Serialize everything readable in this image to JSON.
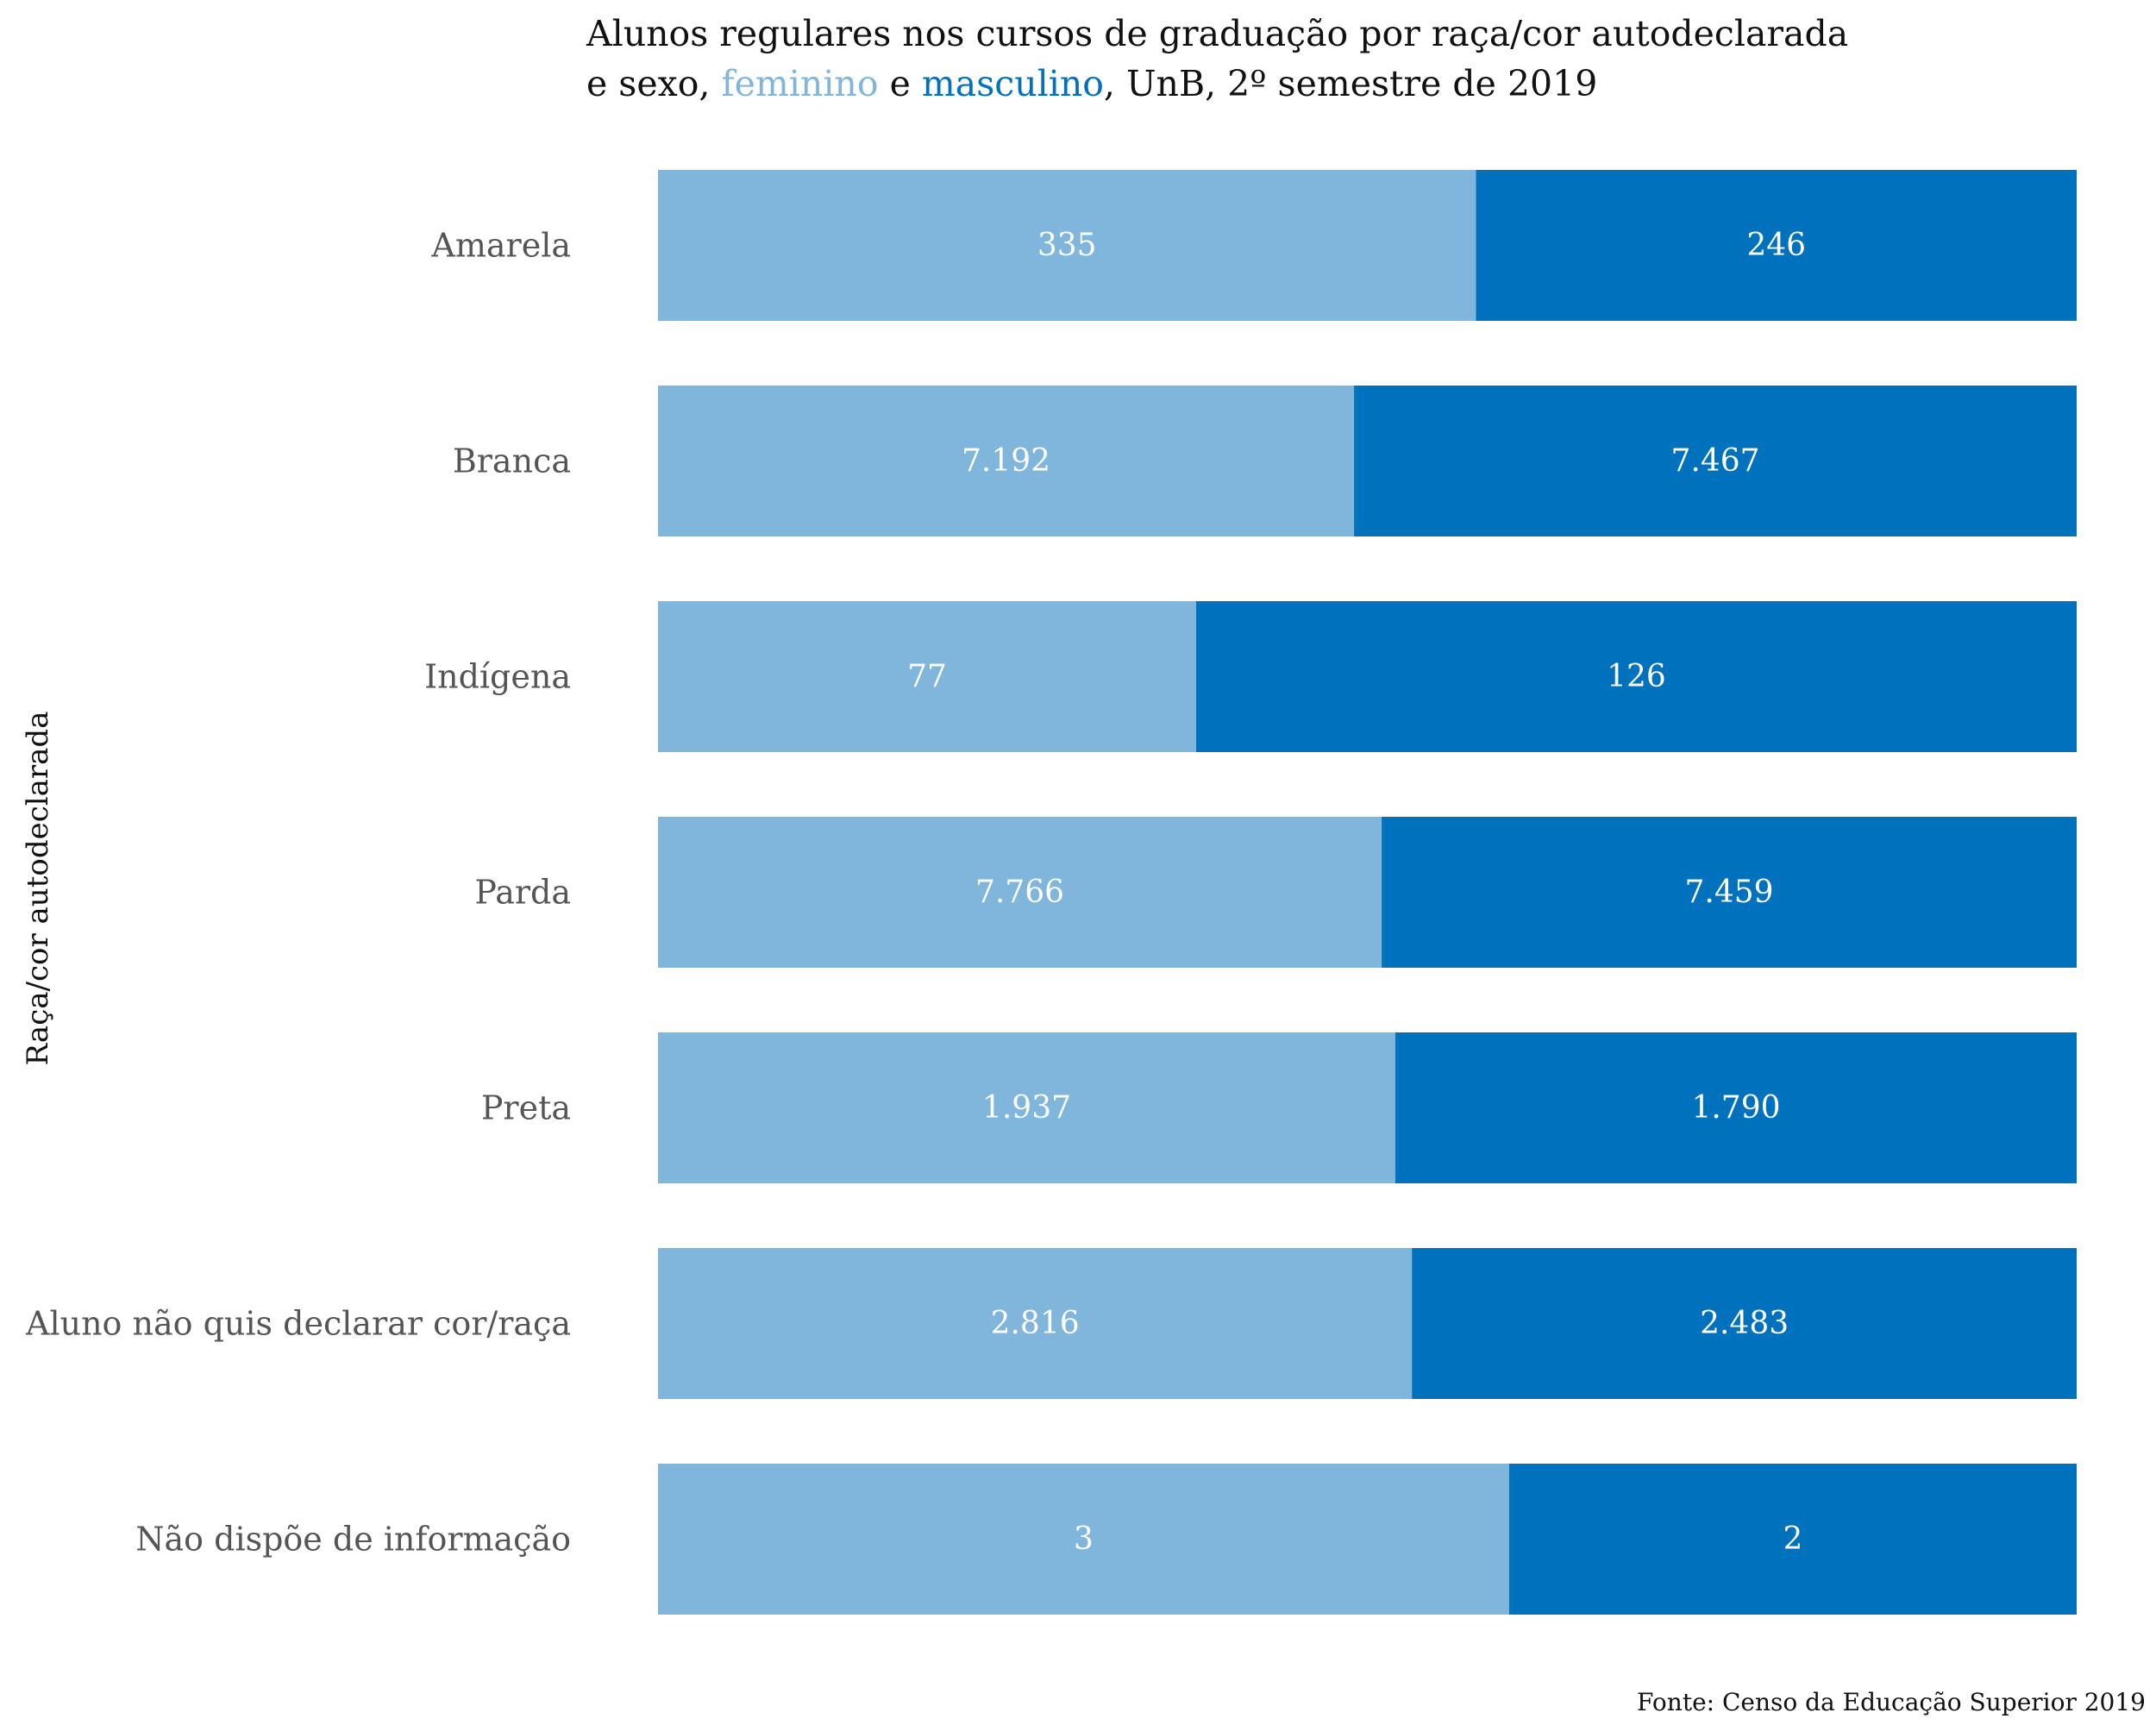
{
  "title": {
    "line1": "Alunos regulares nos cursos de graduação por raça/cor autodeclarada",
    "line2_prefix": "e sexo, ",
    "series1_word": "feminino",
    "connector": " e ",
    "series2_word": "masculino",
    "line2_suffix": ", UnB, 2º semestre de 2019"
  },
  "source": "Fonte: Censo da Educação Superior 2019",
  "colors": {
    "feminino": "#80b6dc",
    "masculino": "#0072bd"
  },
  "chart_data": {
    "type": "bar",
    "orientation": "horizontal",
    "stacking": "percent",
    "ylabel": "Raça/cor autodeclarada",
    "xlabel": "",
    "categories": [
      "Amarela",
      "Branca",
      "Indígena",
      "Parda",
      "Preta",
      "Aluno não quis declarar cor/raça",
      "Não dispõe de informação"
    ],
    "series": [
      {
        "name": "feminino",
        "values": [
          335,
          7192,
          77,
          7766,
          1937,
          2816,
          3
        ],
        "labels": [
          "335",
          "7.192",
          "77",
          "7.766",
          "1.937",
          "2.816",
          "3"
        ]
      },
      {
        "name": "masculino",
        "values": [
          246,
          7467,
          126,
          7459,
          1790,
          2483,
          2
        ],
        "labels": [
          "246",
          "7.467",
          "126",
          "7.459",
          "1.790",
          "2.483",
          "2"
        ]
      }
    ],
    "grid": false,
    "legend": "in-title"
  }
}
